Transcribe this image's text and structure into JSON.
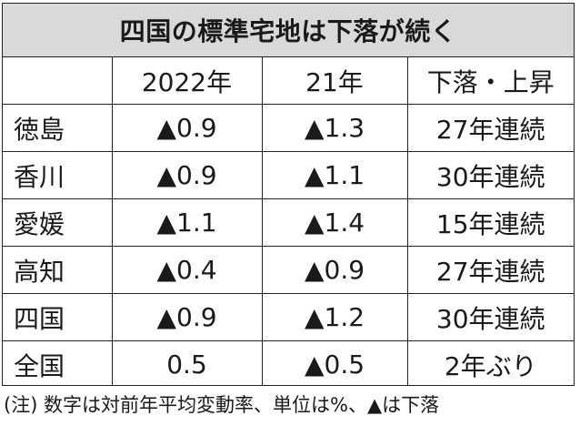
{
  "title": "四国の標準宅地は下落が続く",
  "header": {
    "blank": "",
    "col1": "2022年",
    "col2": "21年",
    "col3": "下落・上昇"
  },
  "rows": [
    {
      "name": "徳島",
      "y2022": "▲0.9",
      "y2021": "▲1.3",
      "trend": "27年連続"
    },
    {
      "name": "香川",
      "y2022": "▲0.9",
      "y2021": "▲1.1",
      "trend": "30年連続"
    },
    {
      "name": "愛媛",
      "y2022": "▲1.1",
      "y2021": "▲1.4",
      "trend": "15年連続"
    },
    {
      "name": "高知",
      "y2022": "▲0.4",
      "y2021": "▲0.9",
      "trend": "27年連続"
    },
    {
      "name": "四国",
      "y2022": "▲0.9",
      "y2021": "▲1.2",
      "trend": "30年連続"
    },
    {
      "name": "全国",
      "y2022": "0.5",
      "y2021": "▲0.5",
      "trend": "2年ぶり"
    }
  ],
  "note": "(注) 数字は対前年平均変動率、単位は%、▲は下落"
}
